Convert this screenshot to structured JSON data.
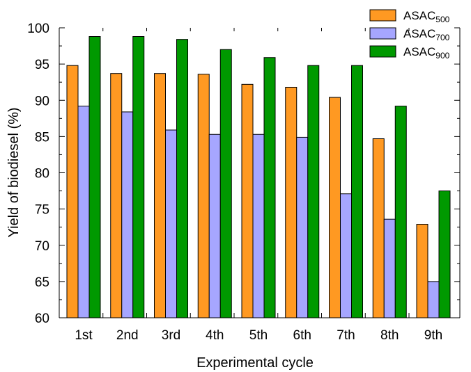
{
  "chart_data": {
    "type": "bar",
    "xlabel": "Experimental cycle",
    "ylabel": "Yield of biodiesel (%)",
    "ylim": [
      60,
      100
    ],
    "yticks": [
      60,
      65,
      70,
      75,
      80,
      85,
      90,
      95,
      100
    ],
    "categories": [
      "1st",
      "2nd",
      "3rd",
      "4th",
      "5th",
      "6th",
      "7th",
      "8th",
      "9th"
    ],
    "series": [
      {
        "name": "ASAC",
        "sub": "500",
        "color": "#ff9922",
        "values": [
          94.8,
          93.7,
          93.7,
          93.6,
          92.2,
          91.8,
          90.4,
          84.7,
          72.9
        ]
      },
      {
        "name": "ASAC",
        "sub": "700",
        "color": "#a6a6ff",
        "values": [
          89.2,
          88.4,
          85.9,
          85.3,
          85.3,
          84.9,
          77.1,
          73.6,
          65.0
        ]
      },
      {
        "name": "ASAC",
        "sub": "900",
        "color": "#009900",
        "values": [
          98.8,
          98.8,
          98.4,
          97.0,
          95.9,
          94.8,
          94.8,
          89.2,
          77.5
        ]
      }
    ],
    "legend_position": "top-right",
    "grid": false
  }
}
